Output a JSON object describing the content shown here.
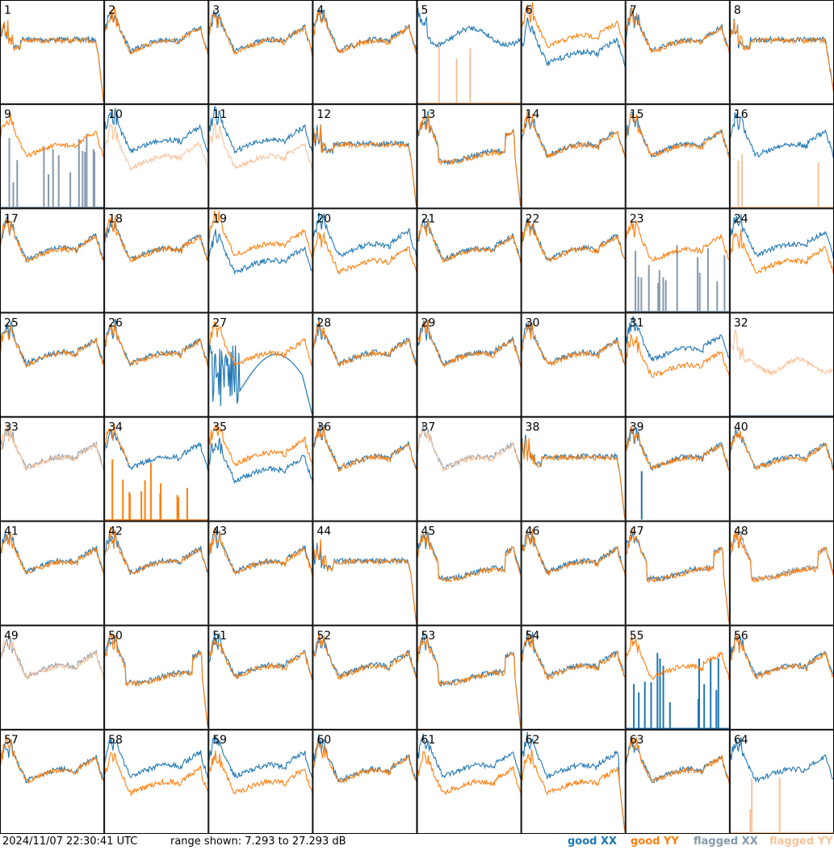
{
  "footer": {
    "timestamp": "2024/11/07 22:30:41 UTC",
    "range": "range shown: 7.293 to 27.293 dB"
  },
  "legend": {
    "good_xx": "good XX",
    "good_yy": "good YY",
    "flagged_xx": "flagged XX",
    "flagged_yy": "flagged YY"
  },
  "colors": {
    "good_xx": "#1f77b4",
    "good_yy": "#ff7f0e",
    "flagged_xx": "#8599ad",
    "flagged_yy": "#f7c39b"
  },
  "chart_data": {
    "type": "line",
    "description_units": "dB",
    "ylim": [
      7.293,
      27.293
    ],
    "grid": "8x8 small multiples",
    "panels": [
      {
        "id": "1",
        "xx": "good",
        "yy": "good",
        "shape": "A",
        "drop": true
      },
      {
        "id": "2",
        "xx": "good",
        "yy": "good",
        "shape": "B"
      },
      {
        "id": "3",
        "xx": "good",
        "yy": "good",
        "shape": "B"
      },
      {
        "id": "4",
        "xx": "good",
        "yy": "good",
        "shape": "B"
      },
      {
        "id": "5",
        "xx": "good",
        "yy": "flagged",
        "shape": "C",
        "yy_mode": "spikes"
      },
      {
        "id": "6",
        "xx": "good",
        "yy": "good",
        "shape": "D",
        "xx_low": true
      },
      {
        "id": "7",
        "xx": "good",
        "yy": "good",
        "shape": "B"
      },
      {
        "id": "8",
        "xx": "good",
        "yy": "good",
        "shape": "A"
      },
      {
        "id": "9",
        "xx": "flagged",
        "yy": "good",
        "shape": "B",
        "xx_mode": "spikes"
      },
      {
        "id": "10",
        "xx": "good",
        "yy": "flagged",
        "shape": "D",
        "yy_low": true
      },
      {
        "id": "11",
        "xx": "good",
        "yy": "flagged",
        "shape": "D",
        "yy_low": true
      },
      {
        "id": "12",
        "xx": "good",
        "yy": "good",
        "shape": "A",
        "drop": true
      },
      {
        "id": "13",
        "xx": "good",
        "yy": "good",
        "shape": "E",
        "drop": true
      },
      {
        "id": "14",
        "xx": "good",
        "yy": "good",
        "shape": "B"
      },
      {
        "id": "15",
        "xx": "good",
        "yy": "good",
        "shape": "B"
      },
      {
        "id": "16",
        "xx": "good",
        "yy": "flagged",
        "shape": "B",
        "yy_mode": "spikes"
      },
      {
        "id": "17",
        "xx": "good",
        "yy": "good",
        "shape": "B"
      },
      {
        "id": "18",
        "xx": "good",
        "yy": "good",
        "shape": "B"
      },
      {
        "id": "19",
        "xx": "good",
        "yy": "good",
        "shape": "D",
        "xx_low": true
      },
      {
        "id": "20",
        "xx": "good",
        "yy": "good",
        "shape": "D",
        "yy_low": true
      },
      {
        "id": "21",
        "xx": "good",
        "yy": "good",
        "shape": "B"
      },
      {
        "id": "22",
        "xx": "good",
        "yy": "good",
        "shape": "B"
      },
      {
        "id": "23",
        "xx": "flagged",
        "yy": "good",
        "shape": "B",
        "xx_mode": "spikes"
      },
      {
        "id": "24",
        "xx": "good",
        "yy": "good",
        "shape": "D",
        "yy_low": true
      },
      {
        "id": "25",
        "xx": "good",
        "yy": "good",
        "shape": "B"
      },
      {
        "id": "26",
        "xx": "good",
        "yy": "good",
        "shape": "B"
      },
      {
        "id": "27",
        "xx": "good",
        "yy": "good",
        "shape": "F",
        "xx_mode": "hump"
      },
      {
        "id": "28",
        "xx": "good",
        "yy": "good",
        "shape": "B"
      },
      {
        "id": "29",
        "xx": "good",
        "yy": "good",
        "shape": "B"
      },
      {
        "id": "30",
        "xx": "good",
        "yy": "good",
        "shape": "B"
      },
      {
        "id": "31",
        "xx": "good",
        "yy": "good",
        "shape": "D",
        "yy_low": true
      },
      {
        "id": "32",
        "xx": "flagged",
        "yy": "flagged",
        "shape": "G",
        "xx_mode": "flat"
      },
      {
        "id": "33",
        "xx": "flagged",
        "yy": "flagged",
        "shape": "B"
      },
      {
        "id": "34",
        "xx": "good",
        "yy": "good",
        "shape": "B",
        "yy_mode": "spikes"
      },
      {
        "id": "35",
        "xx": "good",
        "yy": "good",
        "shape": "D",
        "xx_low": true
      },
      {
        "id": "36",
        "xx": "good",
        "yy": "good",
        "shape": "B"
      },
      {
        "id": "37",
        "xx": "flagged",
        "yy": "flagged",
        "shape": "B"
      },
      {
        "id": "38",
        "xx": "good",
        "yy": "good",
        "shape": "A",
        "drop": true
      },
      {
        "id": "39",
        "xx": "good",
        "yy": "good",
        "shape": "B",
        "xx_mode": "spike1"
      },
      {
        "id": "40",
        "xx": "good",
        "yy": "good",
        "shape": "B"
      },
      {
        "id": "41",
        "xx": "good",
        "yy": "good",
        "shape": "B"
      },
      {
        "id": "42",
        "xx": "good",
        "yy": "good",
        "shape": "B"
      },
      {
        "id": "43",
        "xx": "good",
        "yy": "good",
        "shape": "B"
      },
      {
        "id": "44",
        "xx": "good",
        "yy": "good",
        "shape": "A",
        "drop": true
      },
      {
        "id": "45",
        "xx": "good",
        "yy": "good",
        "shape": "E"
      },
      {
        "id": "46",
        "xx": "good",
        "yy": "good",
        "shape": "B"
      },
      {
        "id": "47",
        "xx": "good",
        "yy": "good",
        "shape": "E",
        "drop": true
      },
      {
        "id": "48",
        "xx": "flagged",
        "yy": "good",
        "shape": "E"
      },
      {
        "id": "49",
        "xx": "flagged",
        "yy": "flagged",
        "shape": "B"
      },
      {
        "id": "50",
        "xx": "good",
        "yy": "good",
        "shape": "E",
        "drop": true
      },
      {
        "id": "51",
        "xx": "good",
        "yy": "good",
        "shape": "B"
      },
      {
        "id": "52",
        "xx": "good",
        "yy": "good",
        "shape": "B"
      },
      {
        "id": "53",
        "xx": "good",
        "yy": "good",
        "shape": "E",
        "drop": true
      },
      {
        "id": "54",
        "xx": "good",
        "yy": "good",
        "shape": "B"
      },
      {
        "id": "55",
        "xx": "good",
        "yy": "good",
        "shape": "B",
        "xx_mode": "spikes"
      },
      {
        "id": "56",
        "xx": "good",
        "yy": "good",
        "shape": "B"
      },
      {
        "id": "57",
        "xx": "good",
        "yy": "good",
        "shape": "B"
      },
      {
        "id": "58",
        "xx": "good",
        "yy": "good",
        "shape": "D",
        "yy_low": true
      },
      {
        "id": "59",
        "xx": "good",
        "yy": "good",
        "shape": "D",
        "yy_low": true
      },
      {
        "id": "60",
        "xx": "good",
        "yy": "good",
        "shape": "B"
      },
      {
        "id": "61",
        "xx": "good",
        "yy": "good",
        "shape": "D",
        "yy_low": true
      },
      {
        "id": "62",
        "xx": "good",
        "yy": "good",
        "shape": "D",
        "yy_low": true,
        "drop": true
      },
      {
        "id": "63",
        "xx": "good",
        "yy": "good",
        "shape": "B"
      },
      {
        "id": "64",
        "xx": "good",
        "yy": "flagged",
        "shape": "B",
        "yy_mode": "spikes"
      }
    ]
  }
}
